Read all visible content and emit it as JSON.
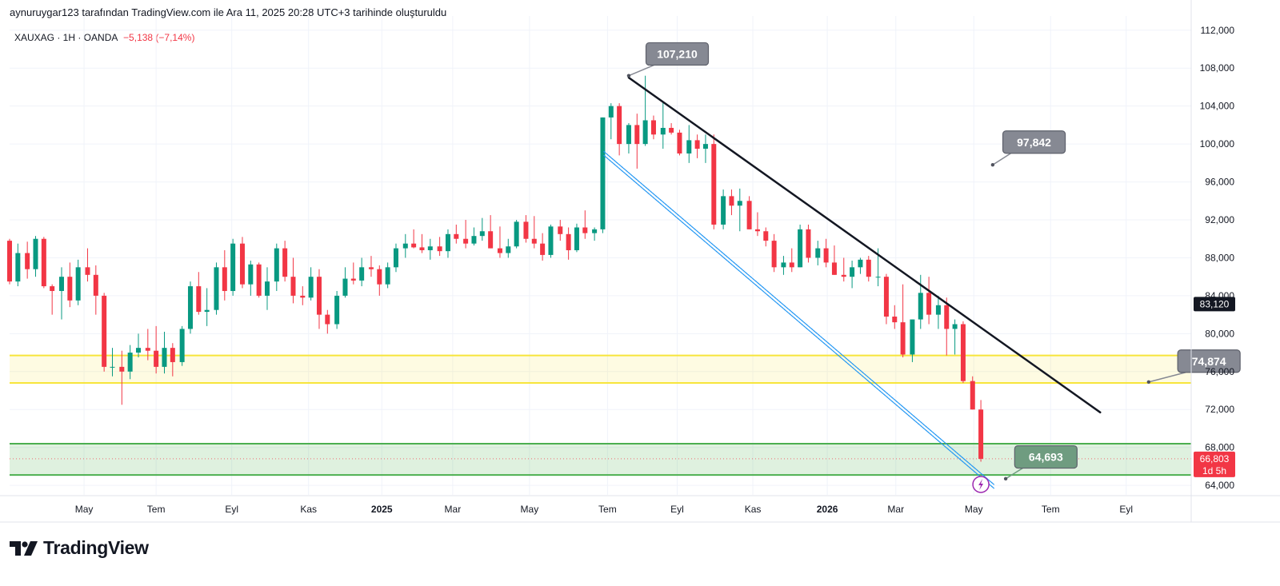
{
  "header": {
    "attribution": "aynuruygar123 tarafından TradingView.com ile Ara 11, 2025 20:28 UTC+3 tarihinde oluşturuldu",
    "symbol_line": "XAUXAG · 1H · OANDA",
    "change": "−5,138 (−7,14%)"
  },
  "logo": {
    "text": "TradingView",
    "icon": "tradingview-logo-icon"
  },
  "colors": {
    "up": "#089981",
    "down": "#f23645",
    "yellow": "#f7e53b",
    "green": "#4caf50",
    "label": "#868993",
    "label_green": "#6f9c80"
  },
  "chart_data": {
    "type": "candlestick",
    "title": "XAUXAG · 1H · OANDA",
    "y_range": [
      63000,
      113500
    ],
    "y_ticks": [
      112000,
      108000,
      104000,
      100000,
      96000,
      92000,
      88000,
      84000,
      80000,
      76000,
      72000,
      68000,
      64000
    ],
    "y_tick_labels": [
      "112,000",
      "108,000",
      "104,000",
      "100,000",
      "96,000",
      "92,000",
      "88,000",
      "84,000",
      "80,000",
      "76,000",
      "72,000",
      "68,000",
      "64,000"
    ],
    "x_range": [
      0,
      100
    ],
    "x_ticks": [
      {
        "label": "May",
        "pos": 6.3,
        "bold": false
      },
      {
        "label": "Tem",
        "pos": 12.4,
        "bold": false
      },
      {
        "label": "Eyl",
        "pos": 18.8,
        "bold": false
      },
      {
        "label": "Kas",
        "pos": 25.3,
        "bold": false
      },
      {
        "label": "2025",
        "pos": 31.5,
        "bold": true
      },
      {
        "label": "Mar",
        "pos": 37.5,
        "bold": false
      },
      {
        "label": "May",
        "pos": 44.0,
        "bold": false
      },
      {
        "label": "Tem",
        "pos": 50.6,
        "bold": false
      },
      {
        "label": "Eyl",
        "pos": 56.5,
        "bold": false
      },
      {
        "label": "Kas",
        "pos": 62.9,
        "bold": false
      },
      {
        "label": "2026",
        "pos": 69.2,
        "bold": true
      },
      {
        "label": "Mar",
        "pos": 75.0,
        "bold": false
      },
      {
        "label": "May",
        "pos": 81.6,
        "bold": false
      },
      {
        "label": "Tem",
        "pos": 88.1,
        "bold": false
      },
      {
        "label": "Eyl",
        "pos": 94.5,
        "bold": false
      }
    ],
    "candles": [
      [
        0.0,
        89800,
        90000,
        85200,
        85500
      ],
      [
        0.7,
        85500,
        89500,
        85000,
        88500
      ],
      [
        1.5,
        88500,
        89700,
        85800,
        86800
      ],
      [
        2.2,
        86800,
        90300,
        86000,
        90000
      ],
      [
        2.9,
        90000,
        90200,
        84800,
        85000
      ],
      [
        3.6,
        85000,
        85200,
        82000,
        84500
      ],
      [
        4.4,
        84500,
        87000,
        81500,
        86000
      ],
      [
        5.1,
        86000,
        87500,
        82800,
        83500
      ],
      [
        5.8,
        83500,
        87800,
        83000,
        87000
      ],
      [
        6.6,
        87000,
        89000,
        85500,
        86200
      ],
      [
        7.3,
        86200,
        87200,
        82000,
        84000
      ],
      [
        8.0,
        84000,
        84300,
        76000,
        76500
      ],
      [
        8.7,
        76500,
        78500,
        75500,
        76500
      ],
      [
        9.5,
        76500,
        78200,
        72500,
        76000
      ],
      [
        10.2,
        76000,
        78800,
        75200,
        78000
      ],
      [
        10.9,
        78000,
        80000,
        77500,
        78500
      ],
      [
        11.7,
        78500,
        80500,
        77200,
        78200
      ],
      [
        12.4,
        78200,
        80800,
        75800,
        76500
      ],
      [
        13.1,
        76500,
        80200,
        75800,
        78500
      ],
      [
        13.8,
        78500,
        79000,
        75500,
        77000
      ],
      [
        14.6,
        77000,
        80800,
        76600,
        80500
      ],
      [
        15.3,
        80500,
        85500,
        80000,
        85000
      ],
      [
        16.0,
        85000,
        86500,
        82000,
        82300
      ],
      [
        16.7,
        82300,
        84800,
        80800,
        82500
      ],
      [
        17.5,
        82500,
        87500,
        82000,
        87000
      ],
      [
        18.2,
        87000,
        88800,
        83500,
        84500
      ],
      [
        18.9,
        84500,
        90000,
        84000,
        89500
      ],
      [
        19.7,
        89500,
        90200,
        84800,
        85200
      ],
      [
        20.4,
        85200,
        87700,
        84000,
        87300
      ],
      [
        21.1,
        87300,
        87500,
        83800,
        84000
      ],
      [
        21.8,
        84000,
        87000,
        82500,
        85500
      ],
      [
        22.6,
        85500,
        89500,
        84500,
        89000
      ],
      [
        23.3,
        89000,
        89800,
        85500,
        86000
      ],
      [
        24.0,
        86000,
        88000,
        83200,
        84000
      ],
      [
        24.8,
        84000,
        85000,
        83000,
        83800
      ],
      [
        25.5,
        83800,
        87000,
        83500,
        86000
      ],
      [
        26.2,
        86000,
        86800,
        80500,
        82000
      ],
      [
        26.9,
        82000,
        82500,
        80000,
        81000
      ],
      [
        27.7,
        81000,
        84500,
        80500,
        84000
      ],
      [
        28.4,
        84000,
        87000,
        83800,
        85800
      ],
      [
        29.1,
        85800,
        87500,
        85200,
        85600
      ],
      [
        29.8,
        85600,
        88000,
        85000,
        87000
      ],
      [
        30.6,
        87000,
        88200,
        86000,
        86800
      ],
      [
        31.3,
        86800,
        87200,
        84000,
        85200
      ],
      [
        32.0,
        85200,
        87500,
        84800,
        87000
      ],
      [
        32.7,
        87000,
        89500,
        86500,
        89000
      ],
      [
        33.5,
        89000,
        90500,
        88000,
        89500
      ],
      [
        34.2,
        89500,
        91000,
        89000,
        89100
      ],
      [
        34.9,
        89100,
        90500,
        88500,
        88800
      ],
      [
        35.6,
        88800,
        90000,
        87800,
        89200
      ],
      [
        36.4,
        89200,
        90200,
        88200,
        88700
      ],
      [
        37.1,
        88700,
        91000,
        88000,
        90500
      ],
      [
        37.8,
        90500,
        91500,
        89500,
        90000
      ],
      [
        38.6,
        90000,
        92000,
        89000,
        89500
      ],
      [
        39.3,
        89500,
        91200,
        89300,
        90300
      ],
      [
        40.0,
        90300,
        92200,
        89800,
        90800
      ],
      [
        40.7,
        90800,
        92500,
        89000,
        89000
      ],
      [
        41.5,
        89000,
        91300,
        88000,
        88500
      ],
      [
        42.2,
        88500,
        90000,
        88000,
        89200
      ],
      [
        42.9,
        89200,
        92000,
        89000,
        91800
      ],
      [
        43.7,
        91800,
        92500,
        89600,
        90000
      ],
      [
        44.4,
        90000,
        92400,
        89000,
        89500
      ],
      [
        45.1,
        89500,
        90600,
        87700,
        88300
      ],
      [
        45.8,
        88300,
        91500,
        88000,
        91300
      ],
      [
        46.6,
        91300,
        92000,
        89800,
        90500
      ],
      [
        47.3,
        90500,
        91200,
        87800,
        88800
      ],
      [
        48.0,
        88800,
        91600,
        88600,
        91200
      ],
      [
        48.7,
        91200,
        93000,
        90000,
        90600
      ],
      [
        49.5,
        90600,
        91200,
        89800,
        91000
      ],
      [
        50.2,
        91000,
        102800,
        90600,
        102800
      ],
      [
        50.9,
        102800,
        104300,
        100500,
        104000
      ],
      [
        51.6,
        104000,
        104300,
        98800,
        100000
      ],
      [
        52.4,
        100000,
        102200,
        99000,
        102000
      ],
      [
        53.1,
        102000,
        103200,
        97400,
        100000
      ],
      [
        53.8,
        100000,
        107200,
        99800,
        102500
      ],
      [
        54.5,
        102500,
        103000,
        100500,
        101000
      ],
      [
        55.3,
        101000,
        104500,
        99500,
        101700
      ],
      [
        56.0,
        101700,
        102200,
        101000,
        101200
      ],
      [
        56.7,
        101200,
        101500,
        98800,
        99000
      ],
      [
        57.5,
        99000,
        102000,
        98000,
        100400
      ],
      [
        58.2,
        100400,
        101000,
        98500,
        99500
      ],
      [
        58.9,
        99500,
        101000,
        98000,
        100000
      ],
      [
        59.6,
        100000,
        101000,
        91000,
        91500
      ],
      [
        60.4,
        91500,
        95200,
        91000,
        94500
      ],
      [
        61.1,
        94500,
        95200,
        92500,
        93500
      ],
      [
        61.8,
        93500,
        95300,
        90800,
        94000
      ],
      [
        62.6,
        94000,
        94500,
        91000,
        91000
      ],
      [
        63.3,
        91000,
        92800,
        90300,
        90800
      ],
      [
        64.0,
        90800,
        91200,
        89200,
        89800
      ],
      [
        64.7,
        89800,
        90500,
        86500,
        87000
      ],
      [
        65.5,
        87000,
        88200,
        86200,
        87500
      ],
      [
        66.2,
        87500,
        89000,
        86500,
        87000
      ],
      [
        66.9,
        87000,
        91500,
        87000,
        91000
      ],
      [
        67.6,
        91000,
        91500,
        87500,
        88000
      ],
      [
        68.4,
        88000,
        89800,
        87200,
        89000
      ],
      [
        69.1,
        89000,
        90000,
        87000,
        87500
      ],
      [
        69.8,
        87500,
        89300,
        86200,
        86200
      ],
      [
        70.6,
        86200,
        88000,
        85500,
        86000
      ],
      [
        71.3,
        86000,
        87700,
        84800,
        87000
      ],
      [
        72.0,
        87000,
        88000,
        86300,
        87800
      ],
      [
        72.7,
        87800,
        88200,
        85500,
        86000
      ],
      [
        73.5,
        86000,
        89000,
        85000,
        86000
      ],
      [
        74.2,
        86000,
        86300,
        81000,
        81800
      ],
      [
        74.9,
        81800,
        83000,
        80500,
        81200
      ],
      [
        75.6,
        81200,
        85200,
        77500,
        77800
      ],
      [
        76.4,
        77800,
        81500,
        77000,
        81500
      ],
      [
        77.1,
        81500,
        86200,
        80500,
        84300
      ],
      [
        77.8,
        84300,
        86000,
        81000,
        82000
      ],
      [
        78.6,
        82000,
        84000,
        80500,
        83000
      ],
      [
        79.3,
        83000,
        83800,
        77700,
        80500
      ],
      [
        80.0,
        80500,
        81500,
        77800,
        81000
      ],
      [
        80.7,
        81000,
        81300,
        74800,
        75000
      ],
      [
        81.5,
        75000,
        75500,
        72000,
        72000
      ],
      [
        82.2,
        72000,
        73000,
        66500,
        66800
      ]
    ],
    "trend_lines": [
      {
        "name": "black-downtrend",
        "from": [
          52.4,
          107000
        ],
        "to": [
          92.3,
          71700
        ],
        "color": "#131722"
      },
      {
        "name": "blue-channel-upper",
        "from": [
          50.3,
          99200
        ],
        "to": [
          83.3,
          64100
        ],
        "color": "#2196f3"
      },
      {
        "name": "blue-channel-lower",
        "from": [
          50.3,
          98800
        ],
        "to": [
          83.3,
          63700
        ],
        "color": "#2196f3"
      }
    ],
    "zones": [
      {
        "name": "yellow-resistance-zone",
        "top": 77700,
        "bottom": 74800
      },
      {
        "name": "green-support-zone",
        "top": 68400,
        "bottom": 65100
      }
    ],
    "price_labels": [
      {
        "name": "label-107210",
        "text": "107,210",
        "x": 56.5,
        "y": 109500,
        "ax": 52.4,
        "ay": 107200,
        "green": false
      },
      {
        "name": "label-97842",
        "text": "97,842",
        "x": 86.7,
        "y": 100200,
        "ax": 83.2,
        "ay": 97800,
        "green": false
      },
      {
        "name": "label-74874",
        "text": "74,874",
        "x": 101.5,
        "y": 77100,
        "ax": 96.4,
        "ay": 74900,
        "green": false
      },
      {
        "name": "label-64693",
        "text": "64,693",
        "x": 87.7,
        "y": 67000,
        "ax": 84.3,
        "ay": 64700,
        "green": true
      }
    ],
    "last_price": {
      "text": "66,803",
      "countdown": "1d 5h",
      "value": 66803
    },
    "marker_price": {
      "text": "83,120",
      "value": 83120
    }
  }
}
